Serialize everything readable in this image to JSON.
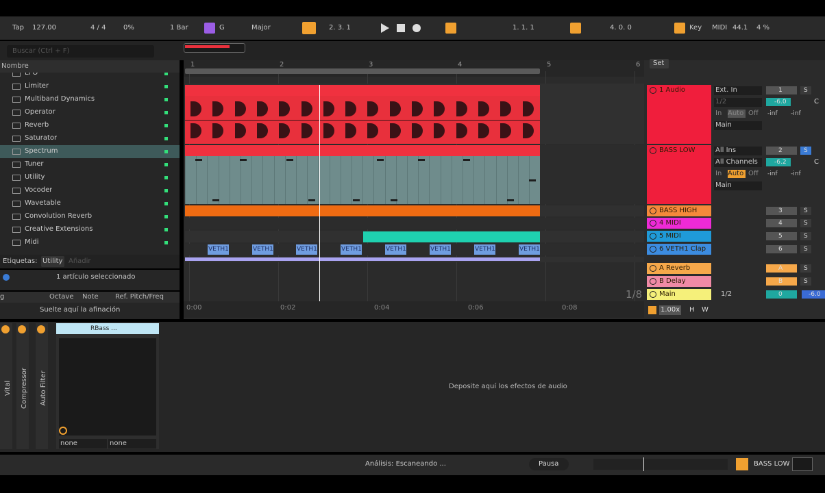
{
  "transport": {
    "tap": "Tap",
    "tempo": "127.00",
    "signature": "4 / 4",
    "groove": "0%",
    "quantize": "1 Bar",
    "key": "G",
    "scale": "Major",
    "position": "2.  3.  1",
    "loop_start": "1.  1.  1",
    "loop_length": "4.  0.  0",
    "key_map": "Key",
    "midi_map": "MIDI",
    "sample_rate": "44.1",
    "cpu": "4 %"
  },
  "browser": {
    "search": "Buscar (Ctrl + F)",
    "column": "Nombre",
    "items": [
      "LFO",
      "Limiter",
      "Multiband Dynamics",
      "Operator",
      "Reverb",
      "Saturator",
      "Spectrum",
      "Tuner",
      "Utility",
      "Vocoder",
      "Wavetable",
      "Convolution Reverb",
      "Creative Extensions",
      "Midi"
    ],
    "tags_label": "Etiquetas:",
    "tag": "Utility",
    "tag_add": "Añadir",
    "selection": "1 artículo seleccionado",
    "tuning_columns": [
      "g",
      "Octave",
      "Note",
      "Ref. Pitch/Freq"
    ],
    "tuning_drop": "Suelte aquí la afinación"
  },
  "arrangement": {
    "bars": [
      "1",
      "2",
      "3",
      "4",
      "5",
      "6"
    ],
    "times": [
      "0:00",
      "0:02",
      "0:04",
      "0:06",
      "0:08"
    ],
    "clip_label": "VETH1",
    "zoom": "1/8"
  },
  "mixer": {
    "set": "Set",
    "solo": "S",
    "send_off": "-inf",
    "tempo_scale": "1.00x",
    "h": "H",
    "w": "W",
    "monitor": [
      "In",
      "Auto",
      "Off"
    ],
    "tracks": [
      {
        "name": "1 Audio",
        "number": "1",
        "input": "Ext. In",
        "channel": "1/2",
        "output": "Main",
        "volume": "-6.0",
        "pan": "C"
      },
      {
        "name": "BASS LOW",
        "number": "2",
        "input": "All Ins",
        "channel": "All Channels",
        "output": "Main",
        "volume": "-6.2",
        "pan": "C"
      },
      {
        "name": "BASS HIGH",
        "number": "3"
      },
      {
        "name": "4 MIDI",
        "number": "4"
      },
      {
        "name": "5 MIDI",
        "number": "5"
      },
      {
        "name": "6 VETH1 Clap",
        "number": "6"
      },
      {
        "name": "A Reverb",
        "number": "A"
      },
      {
        "name": "B Delay",
        "number": "B"
      },
      {
        "name": "Main",
        "number": "0",
        "channel": "1/2",
        "volume": "-6.0"
      }
    ]
  },
  "devices": {
    "strips": [
      "Vital",
      "Compressor",
      "Auto Filter"
    ],
    "rack": "RBass ...",
    "chains": [
      "none",
      "none"
    ],
    "drop": "Deposite aquí los efectos de audio"
  },
  "status": {
    "analysis": "Análisis: Escaneando ...",
    "pause": "Pausa",
    "track": "BASS LOW"
  }
}
